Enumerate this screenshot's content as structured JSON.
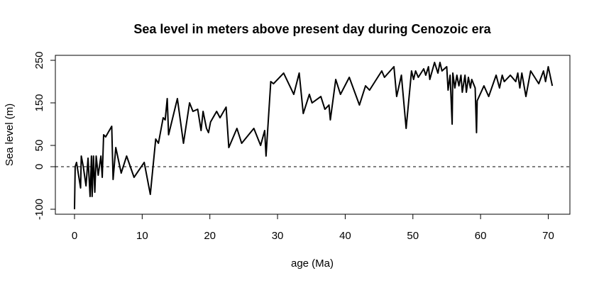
{
  "chart_data": {
    "type": "line",
    "title": "Sea level in meters above present day during Cenozoic era",
    "x_label": "age (Ma)",
    "y_label": "Sea level (m)",
    "x": [
      0,
      0.1,
      0.3,
      0.5,
      0.9,
      1.0,
      1.3,
      1.7,
      2.0,
      2.3,
      2.5,
      2.6,
      2.8,
      3.0,
      3.2,
      3.5,
      3.9,
      4.1,
      4.3,
      4.6,
      5.5,
      5.7,
      6.1,
      6.9,
      7.7,
      8.8,
      10.3,
      11.2,
      12.0,
      12.4,
      13.1,
      13.4,
      13.7,
      13.9,
      15.2,
      16.1,
      17.0,
      17.5,
      18.2,
      18.7,
      19.0,
      19.5,
      19.8,
      20.1,
      21.0,
      21.5,
      22.4,
      22.8,
      24.0,
      24.7,
      26.5,
      27.5,
      28.1,
      28.3,
      29.0,
      29.4,
      30.9,
      32.4,
      33.2,
      33.8,
      34.7,
      35.1,
      36.4,
      37.0,
      37.6,
      37.8,
      38.6,
      39.3,
      40.6,
      42.1,
      43.0,
      43.6,
      45.4,
      45.8,
      47.2,
      47.6,
      48.3,
      49.0,
      49.8,
      50.1,
      50.4,
      50.8,
      51.6,
      51.9,
      52.3,
      52.5,
      53.2,
      53.7,
      54.0,
      54.3,
      55.0,
      55.2,
      55.5,
      55.8,
      55.9,
      56.2,
      56.5,
      56.8,
      57.1,
      57.3,
      57.7,
      57.9,
      58.2,
      58.5,
      58.7,
      59.2,
      59.4,
      59.5,
      60.5,
      61.2,
      62.3,
      62.8,
      63.2,
      63.5,
      64.4,
      65.2,
      65.5,
      65.8,
      66.1,
      66.7,
      67.4,
      68.6,
      69.3,
      69.6,
      70.0,
      70.6
    ],
    "values": [
      -100,
      0,
      10,
      -10,
      -50,
      25,
      0,
      -45,
      20,
      -70,
      25,
      -70,
      25,
      -60,
      25,
      -20,
      25,
      -25,
      75,
      70,
      95,
      -30,
      45,
      -15,
      25,
      -25,
      10,
      -65,
      65,
      55,
      115,
      110,
      160,
      75,
      160,
      55,
      150,
      130,
      135,
      85,
      130,
      90,
      80,
      105,
      130,
      115,
      140,
      45,
      90,
      55,
      90,
      50,
      85,
      25,
      200,
      195,
      220,
      170,
      220,
      125,
      170,
      150,
      165,
      135,
      145,
      110,
      205,
      170,
      210,
      145,
      190,
      180,
      225,
      210,
      235,
      165,
      215,
      90,
      225,
      205,
      225,
      210,
      230,
      215,
      235,
      205,
      245,
      220,
      245,
      225,
      235,
      180,
      215,
      100,
      220,
      185,
      215,
      190,
      215,
      175,
      215,
      175,
      210,
      185,
      205,
      185,
      80,
      155,
      190,
      165,
      215,
      185,
      215,
      200,
      215,
      200,
      220,
      185,
      220,
      165,
      225,
      195,
      225,
      200,
      235,
      190
    ],
    "color": "#000000",
    "xlim": [
      -2.83,
      73.2
    ],
    "ylim": [
      -111.7,
      261.7
    ],
    "xticks": [
      0,
      10,
      20,
      30,
      40,
      50,
      60,
      70
    ],
    "yticks": [
      -100,
      0,
      50,
      150,
      250
    ],
    "reference_line": {
      "value": 0,
      "style": "dashed"
    }
  }
}
